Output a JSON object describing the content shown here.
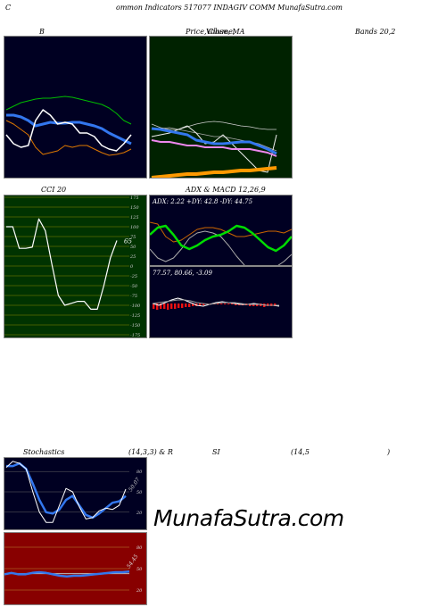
{
  "header": {
    "left": "C",
    "title": "ommon  Indicators 517077 INDAGIV COMM MunafaSutra.com"
  },
  "labels": {
    "bb": "B",
    "price_1": "Price,",
    "price_2": "Volume,",
    "price_3": "Close, MA",
    "bands": "Bands 20,2",
    "cci": "CCI 20",
    "adx": "ADX  & MACD 12,26,9",
    "stoch": "Stochastics",
    "stoch_params": "(14,3,3) & R",
    "si": "SI",
    "rsi_params": "(14,5",
    "rsi_close": ")"
  },
  "watermark": "MunafaSutra.com",
  "colors": {
    "panel_bg": "#000022",
    "price_bg": "#002200",
    "cci_bg": "#003300",
    "rsi_bg": "#880000",
    "blue": "#3377ee",
    "green": "#00dd00",
    "orange": "#ee8800",
    "white": "#ffffff"
  },
  "chart_data": [
    {
      "id": "bollinger",
      "type": "line",
      "title": "B",
      "series": [
        {
          "values": [
            82,
            78,
            74,
            72,
            70,
            69,
            69,
            68,
            67,
            68,
            70,
            72,
            74,
            76,
            80,
            86,
            94,
            98
          ]
        },
        {
          "values": [
            88,
            88,
            90,
            94,
            100,
            98,
            96,
            97,
            97,
            96,
            96,
            98,
            100,
            103,
            108,
            112,
            116,
            120
          ]
        },
        {
          "values": [
            94,
            98,
            104,
            110,
            124,
            132,
            130,
            128,
            122,
            124,
            122,
            122,
            126,
            130,
            133,
            132,
            130,
            126
          ]
        },
        {
          "values": [
            110,
            120,
            124,
            122,
            94,
            82,
            88,
            98,
            96,
            98,
            108,
            108,
            112,
            122,
            126,
            128,
            120,
            110
          ]
        }
      ]
    },
    {
      "id": "price_ma",
      "type": "line",
      "title": "Price, Volume, Close, MA",
      "series": [
        {
          "values": [
            98,
            102,
            104,
            104,
            101,
            98,
            96,
            95,
            96,
            98,
            100,
            101,
            103,
            104,
            104
          ]
        },
        {
          "values": [
            104,
            103,
            102,
            104,
            106,
            108,
            110,
            112,
            112,
            114,
            116,
            118,
            120,
            124,
            128
          ]
        },
        {
          "values": [
            112,
            110,
            108,
            104,
            100,
            108,
            120,
            118,
            110,
            120,
            130,
            140,
            150,
            152,
            110
          ]
        },
        {
          "values": [
            103,
            104,
            106,
            108,
            110,
            116,
            118,
            120,
            120,
            119,
            118,
            118,
            122,
            126,
            131
          ]
        },
        {
          "values": [
            116,
            118,
            118,
            120,
            122,
            122,
            124,
            124,
            124,
            126,
            126,
            126,
            128,
            130,
            134
          ]
        },
        {
          "values": [
            158,
            157,
            156,
            155,
            154,
            154,
            153,
            152,
            152,
            151,
            150,
            150,
            149,
            148,
            147
          ]
        }
      ]
    },
    {
      "id": "cci",
      "type": "line",
      "title": "CCI 20",
      "value_label": "65",
      "ylim": [
        -175,
        175
      ],
      "ticks": [
        "175",
        "150",
        "125",
        "100",
        "75",
        "50",
        "25",
        "0",
        "-25",
        "-50",
        "-75",
        "-100",
        "-125",
        "-150",
        "-175"
      ],
      "series": [
        {
          "values": [
            100,
            100,
            45,
            45,
            48,
            120,
            90,
            5,
            -75,
            -100,
            -95,
            -90,
            -90,
            -110,
            -110,
            -50,
            20,
            65
          ]
        }
      ]
    },
    {
      "id": "adx",
      "type": "line",
      "title": "ADX & MACD 12,26,9",
      "readout": "ADX: 2.22  +DY: 42.8  -DY: 44.75",
      "series": [
        {
          "values": [
            60,
            70,
            74,
            70,
            60,
            48,
            42,
            40,
            42,
            46,
            56,
            68,
            78,
            86,
            92,
            90,
            80,
            74,
            66
          ]
        },
        {
          "values": [
            30,
            32,
            46,
            52,
            50,
            44,
            38,
            36,
            36,
            38,
            42,
            46,
            46,
            44,
            42,
            40,
            40,
            42,
            38
          ]
        },
        {
          "values": [
            44,
            36,
            34,
            44,
            56,
            60,
            56,
            50,
            46,
            44,
            40,
            34,
            36,
            42,
            50,
            58,
            62,
            56,
            46
          ]
        }
      ]
    },
    {
      "id": "macd",
      "type": "bar",
      "readout": "77.57,  80.66,  -3.09",
      "histogram": [
        -6,
        -7,
        -6,
        -6,
        -7,
        -6,
        -6,
        -5,
        -5,
        -4,
        -4,
        -3,
        -3,
        -2,
        -2,
        -1,
        -1,
        -1,
        -1,
        -1,
        -1,
        -1,
        -1,
        -2,
        -2,
        -2,
        -2,
        -3,
        -3,
        -3,
        -3,
        -4,
        -3,
        -3,
        -3
      ],
      "series": [
        {
          "values": [
            0,
            2,
            -1,
            -4,
            -6,
            -4,
            -1,
            2,
            3,
            1,
            -1,
            -2,
            -1,
            0,
            1,
            1,
            0,
            1,
            2,
            2,
            3
          ]
        },
        {
          "values": [
            0,
            -1,
            -2,
            -3,
            -4,
            -4,
            -3,
            -1,
            0,
            1,
            0,
            -1,
            -1,
            -1,
            0,
            1,
            1,
            1,
            2,
            2,
            2
          ]
        }
      ]
    },
    {
      "id": "stochastics",
      "type": "line",
      "title": "Stochastics (14,3,3)",
      "ylim": [
        0,
        100
      ],
      "ticks": [
        "80",
        "50",
        "20"
      ],
      "value_label": "50.07",
      "series": [
        {
          "values": [
            88,
            88,
            92,
            84,
            62,
            38,
            20,
            18,
            24,
            38,
            44,
            30,
            16,
            12,
            18,
            26,
            34,
            36,
            44
          ]
        },
        {
          "values": [
            86,
            95,
            92,
            84,
            50,
            20,
            5,
            5,
            30,
            55,
            50,
            28,
            10,
            12,
            22,
            26,
            24,
            30,
            54
          ]
        }
      ]
    },
    {
      "id": "rsi",
      "type": "line",
      "title": "RSI (14,5)",
      "ylim": [
        0,
        100
      ],
      "ticks": [
        "80",
        "50",
        "20"
      ],
      "value_label": "54.45",
      "series": [
        {
          "values": [
            42,
            44,
            42,
            42,
            44,
            45,
            44,
            42,
            40,
            39,
            40,
            40,
            41,
            42,
            43,
            44,
            45,
            45,
            46
          ]
        },
        {
          "values": [
            43,
            43,
            43,
            43,
            43,
            43,
            43,
            43,
            43,
            43,
            43,
            43,
            43,
            43,
            43,
            43,
            43,
            43,
            43
          ]
        }
      ]
    }
  ]
}
